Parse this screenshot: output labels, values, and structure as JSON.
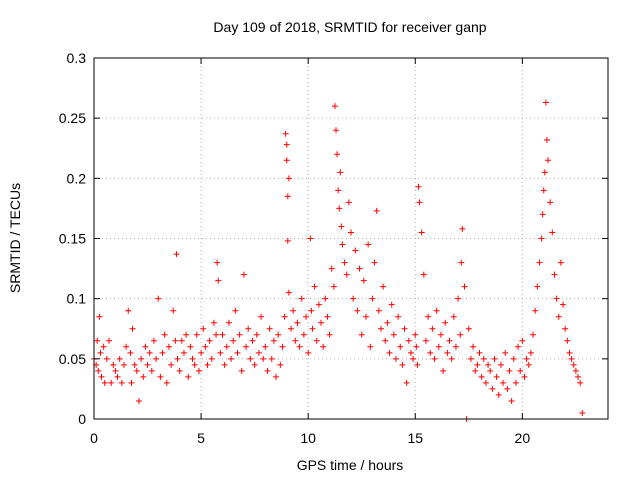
{
  "chart_data": {
    "type": "scatter",
    "title": "Day 109 of 2018, SRMTID for receiver ganp",
    "xlabel": "GPS time / hours",
    "ylabel": "SRMTID / TECUs",
    "xlim": [
      0,
      24
    ],
    "ylim": [
      0,
      0.3
    ],
    "grid": true,
    "marker": "plus",
    "color": "#ff0000",
    "xticks": [
      0,
      5,
      10,
      15,
      20
    ],
    "xtick_labels": [
      "0",
      "5",
      "10",
      "15",
      "20"
    ],
    "yticks": [
      0,
      0.05,
      0.1,
      0.15,
      0.2,
      0.25,
      0.3
    ],
    "ytick_labels": [
      "0",
      "0.05",
      "0.1",
      "0.15",
      "0.2",
      "0.25",
      "0.3"
    ],
    "series": [
      {
        "name": "SRMTID",
        "x": [
          0.0,
          0.1,
          0.15,
          0.2,
          0.25,
          0.3,
          0.35,
          0.45,
          0.5,
          0.6,
          0.7,
          0.8,
          0.9,
          1.0,
          1.1,
          1.2,
          1.3,
          1.4,
          1.5,
          1.6,
          1.7,
          1.75,
          1.8,
          1.9,
          2.0,
          2.1,
          2.2,
          2.3,
          2.4,
          2.5,
          2.6,
          2.7,
          2.8,
          2.9,
          3.0,
          3.1,
          3.2,
          3.3,
          3.4,
          3.5,
          3.6,
          3.7,
          3.8,
          3.85,
          3.9,
          4.0,
          4.1,
          4.2,
          4.3,
          4.4,
          4.5,
          4.6,
          4.7,
          4.8,
          4.9,
          5.0,
          5.1,
          5.2,
          5.3,
          5.4,
          5.5,
          5.6,
          5.7,
          5.75,
          5.8,
          5.9,
          6.0,
          6.1,
          6.2,
          6.3,
          6.4,
          6.5,
          6.6,
          6.7,
          6.8,
          6.9,
          7.0,
          7.1,
          7.2,
          7.3,
          7.4,
          7.5,
          7.6,
          7.7,
          7.8,
          7.9,
          8.0,
          8.1,
          8.2,
          8.3,
          8.4,
          8.5,
          8.6,
          8.7,
          8.8,
          8.9,
          8.95,
          9.0,
          9.0,
          9.05,
          9.05,
          9.1,
          9.1,
          9.2,
          9.3,
          9.4,
          9.5,
          9.6,
          9.7,
          9.8,
          9.9,
          10.0,
          10.1,
          10.15,
          10.2,
          10.3,
          10.4,
          10.5,
          10.6,
          10.7,
          10.8,
          10.9,
          11.0,
          11.1,
          11.2,
          11.25,
          11.3,
          11.35,
          11.4,
          11.45,
          11.5,
          11.55,
          11.6,
          11.7,
          11.8,
          11.9,
          12.0,
          12.1,
          12.2,
          12.3,
          12.4,
          12.5,
          12.6,
          12.7,
          12.8,
          12.9,
          13.0,
          13.1,
          13.2,
          13.3,
          13.4,
          13.5,
          13.6,
          13.7,
          13.8,
          13.9,
          14.0,
          14.1,
          14.2,
          14.3,
          14.4,
          14.5,
          14.6,
          14.7,
          14.8,
          14.9,
          15.0,
          15.05,
          15.1,
          15.15,
          15.2,
          15.3,
          15.4,
          15.5,
          15.6,
          15.7,
          15.8,
          15.9,
          16.0,
          16.1,
          16.2,
          16.3,
          16.4,
          16.5,
          16.6,
          16.7,
          16.8,
          16.9,
          17.0,
          17.1,
          17.15,
          17.2,
          17.3,
          17.4,
          17.5,
          17.6,
          17.7,
          17.8,
          17.9,
          18.0,
          18.1,
          18.2,
          18.3,
          18.4,
          18.5,
          18.6,
          18.7,
          18.8,
          18.9,
          19.0,
          19.1,
          19.2,
          19.3,
          19.4,
          19.5,
          19.6,
          19.7,
          19.8,
          19.9,
          20.0,
          20.1,
          20.2,
          20.3,
          20.4,
          20.5,
          20.6,
          20.7,
          20.8,
          20.9,
          20.95,
          21.0,
          21.05,
          21.1,
          21.15,
          21.2,
          21.3,
          21.4,
          21.5,
          21.6,
          21.7,
          21.8,
          21.9,
          22.0,
          22.1,
          22.2,
          22.3,
          22.4,
          22.5,
          22.6,
          22.7,
          22.8
        ],
        "y": [
          0.05,
          0.045,
          0.065,
          0.04,
          0.085,
          0.055,
          0.035,
          0.06,
          0.03,
          0.05,
          0.065,
          0.03,
          0.045,
          0.04,
          0.035,
          0.05,
          0.03,
          0.045,
          0.06,
          0.09,
          0.055,
          0.03,
          0.075,
          0.045,
          0.04,
          0.015,
          0.05,
          0.035,
          0.06,
          0.045,
          0.055,
          0.04,
          0.065,
          0.05,
          0.1,
          0.035,
          0.055,
          0.07,
          0.03,
          0.06,
          0.045,
          0.09,
          0.065,
          0.137,
          0.05,
          0.04,
          0.065,
          0.055,
          0.07,
          0.035,
          0.06,
          0.05,
          0.045,
          0.07,
          0.04,
          0.055,
          0.075,
          0.06,
          0.045,
          0.065,
          0.05,
          0.08,
          0.07,
          0.13,
          0.115,
          0.055,
          0.07,
          0.045,
          0.06,
          0.08,
          0.05,
          0.065,
          0.09,
          0.055,
          0.07,
          0.04,
          0.12,
          0.06,
          0.075,
          0.05,
          0.065,
          0.045,
          0.07,
          0.055,
          0.085,
          0.05,
          0.06,
          0.04,
          0.075,
          0.05,
          0.065,
          0.035,
          0.07,
          0.045,
          0.06,
          0.085,
          0.237,
          0.228,
          0.215,
          0.185,
          0.148,
          0.2,
          0.105,
          0.075,
          0.09,
          0.065,
          0.08,
          0.06,
          0.1,
          0.07,
          0.085,
          0.055,
          0.15,
          0.09,
          0.075,
          0.11,
          0.065,
          0.095,
          0.08,
          0.06,
          0.1,
          0.085,
          0.07,
          0.125,
          0.11,
          0.26,
          0.24,
          0.22,
          0.19,
          0.175,
          0.205,
          0.16,
          0.145,
          0.13,
          0.12,
          0.18,
          0.155,
          0.1,
          0.14,
          0.09,
          0.125,
          0.07,
          0.115,
          0.085,
          0.145,
          0.06,
          0.1,
          0.13,
          0.173,
          0.09,
          0.075,
          0.11,
          0.065,
          0.08,
          0.055,
          0.095,
          0.07,
          0.05,
          0.085,
          0.06,
          0.045,
          0.075,
          0.03,
          0.065,
          0.055,
          0.05,
          0.07,
          0.06,
          0.045,
          0.193,
          0.18,
          0.155,
          0.12,
          0.065,
          0.085,
          0.055,
          0.075,
          0.05,
          0.09,
          0.06,
          0.07,
          0.04,
          0.08,
          0.055,
          0.065,
          0.05,
          0.085,
          0.06,
          0.1,
          0.07,
          0.13,
          0.158,
          0.11,
          0.0,
          0.075,
          0.05,
          0.06,
          0.04,
          0.045,
          0.055,
          0.035,
          0.05,
          0.03,
          0.045,
          0.04,
          0.025,
          0.05,
          0.035,
          0.02,
          0.045,
          0.03,
          0.055,
          0.025,
          0.04,
          0.015,
          0.05,
          0.03,
          0.06,
          0.04,
          0.065,
          0.035,
          0.05,
          0.045,
          0.055,
          0.07,
          0.09,
          0.11,
          0.13,
          0.15,
          0.17,
          0.19,
          0.205,
          0.263,
          0.232,
          0.215,
          0.18,
          0.155,
          0.12,
          0.1,
          0.085,
          0.13,
          0.095,
          0.075,
          0.065,
          0.055,
          0.05,
          0.045,
          0.04,
          0.035,
          0.03,
          0.005
        ]
      }
    ]
  }
}
